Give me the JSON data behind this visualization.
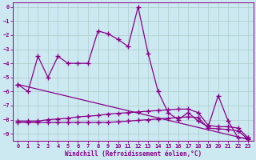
{
  "xlabel": "Windchill (Refroidissement éolien,°C)",
  "xlim": [
    -0.5,
    23.5
  ],
  "ylim": [
    -9.5,
    0.3
  ],
  "yticks": [
    0,
    -1,
    -2,
    -3,
    -4,
    -5,
    -6,
    -7,
    -8,
    -9
  ],
  "xticks": [
    0,
    1,
    2,
    3,
    4,
    5,
    6,
    7,
    8,
    9,
    10,
    11,
    12,
    13,
    14,
    15,
    16,
    17,
    18,
    19,
    20,
    21,
    22,
    23
  ],
  "bg_color": "#cce8f0",
  "line_color": "#880088",
  "grid_color": "#aacccc",
  "series": [
    {
      "x": [
        0,
        1,
        2,
        3,
        4,
        5,
        6,
        7,
        8,
        9,
        10,
        11,
        12,
        13,
        14,
        15,
        16,
        17,
        18,
        19,
        20,
        21,
        22,
        23
      ],
      "y": [
        -5.5,
        -6.0,
        -3.5,
        -5.0,
        -3.5,
        -4.0,
        -4.0,
        -4.0,
        -1.7,
        -1.9,
        -2.3,
        -2.8,
        0.0,
        -3.3,
        -6.0,
        -7.5,
        -8.0,
        -7.5,
        -8.1,
        -8.5,
        -6.3,
        -8.1,
        -9.3,
        -9.3
      ]
    },
    {
      "x": [
        0,
        23
      ],
      "y": [
        -5.5,
        -9.4
      ]
    },
    {
      "x": [
        0,
        1,
        2,
        3,
        4,
        5,
        6,
        7,
        8,
        9,
        10,
        11,
        12,
        13,
        14,
        15,
        16,
        17,
        18,
        19,
        20,
        21,
        22,
        23
      ],
      "y": [
        -8.1,
        -8.1,
        -8.1,
        -8.0,
        -7.95,
        -7.9,
        -7.8,
        -7.75,
        -7.7,
        -7.6,
        -7.55,
        -7.5,
        -7.45,
        -7.4,
        -7.35,
        -7.3,
        -7.25,
        -7.25,
        -7.5,
        -8.4,
        -8.5,
        -8.5,
        -8.6,
        -9.3
      ]
    },
    {
      "x": [
        0,
        1,
        2,
        3,
        4,
        5,
        6,
        7,
        8,
        9,
        10,
        11,
        12,
        13,
        14,
        15,
        16,
        17,
        18,
        19,
        20,
        21,
        22,
        23
      ],
      "y": [
        -8.2,
        -8.2,
        -8.2,
        -8.2,
        -8.2,
        -8.2,
        -8.2,
        -8.2,
        -8.2,
        -8.2,
        -8.15,
        -8.1,
        -8.05,
        -8.0,
        -7.95,
        -7.9,
        -7.85,
        -7.8,
        -7.85,
        -8.6,
        -8.65,
        -8.7,
        -8.8,
        -9.4
      ]
    }
  ]
}
